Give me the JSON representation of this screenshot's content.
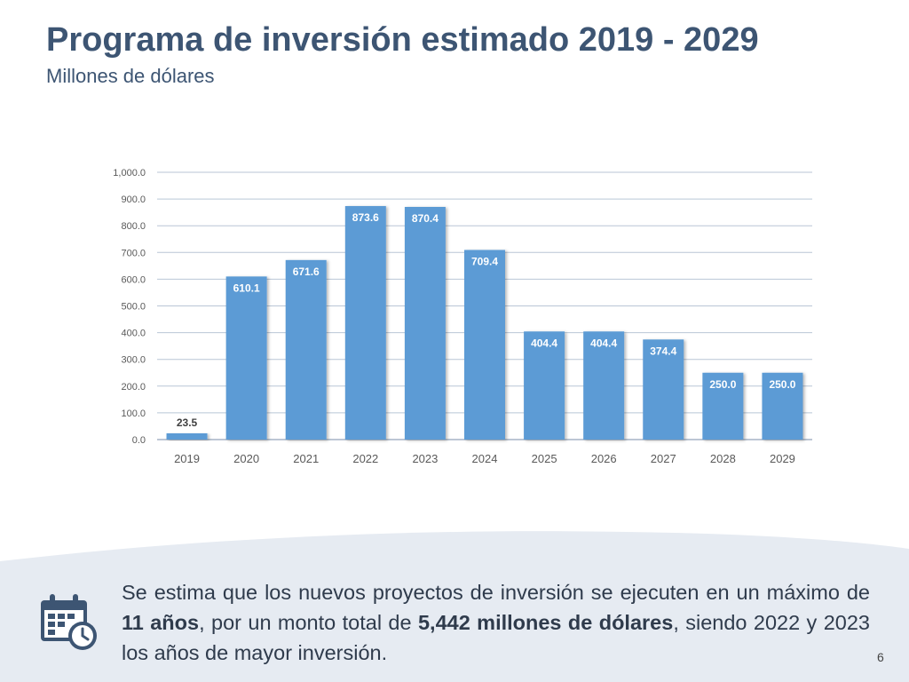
{
  "slide": {
    "title": "Programa de inversión estimado 2019 - 2029",
    "subtitle": "Millones de dólares",
    "page_number": "6"
  },
  "footer": {
    "t1": "Se estima que los nuevos proyectos de inversión se ejecuten en un máximo de ",
    "b1": "11 años",
    "t2": ", por un monto total de ",
    "b2": "5,442 millones de dólares",
    "t3": ", siendo 2022 y 2023 los años de mayor inversión.",
    "icon": "calendar-clock-icon"
  },
  "colors": {
    "bar": "#5b9bd5",
    "title": "#3d5573",
    "band": "#e6ebf2"
  },
  "chart_data": {
    "type": "bar",
    "categories": [
      "2019",
      "2020",
      "2021",
      "2022",
      "2023",
      "2024",
      "2025",
      "2026",
      "2027",
      "2028",
      "2029"
    ],
    "values": [
      23.5,
      610.1,
      671.6,
      873.6,
      870.4,
      709.4,
      404.4,
      404.4,
      374.4,
      250.0,
      250.0
    ],
    "data_labels": [
      "23.5",
      "610.1",
      "671.6",
      "873.6",
      "870.4",
      "709.4",
      "404.4",
      "404.4",
      "374.4",
      "250.0",
      "250.0"
    ],
    "y_ticks": [
      "0.0",
      "100.0",
      "200.0",
      "300.0",
      "400.0",
      "500.0",
      "600.0",
      "700.0",
      "800.0",
      "900.0",
      "1,000.0"
    ],
    "ylim": [
      0,
      1000
    ],
    "title": "",
    "xlabel": "",
    "ylabel": "",
    "grid": true,
    "legend": false
  }
}
